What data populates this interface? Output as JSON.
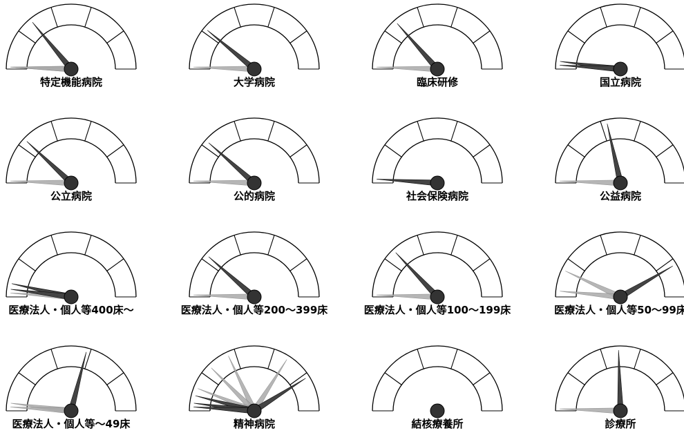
{
  "chart_data": {
    "type": "gauge",
    "scale": [
      0,
      100
    ],
    "segments": 5,
    "colors": {
      "primary_needle": "#444444",
      "secondary_needle": "#aaaaaa",
      "hub": "#333333",
      "line": "#000000"
    },
    "gauges": [
      {
        "label": "特定機能病院",
        "needles": [
          {
            "value": 28,
            "style": "primary"
          },
          {
            "value": 1,
            "style": "secondary"
          },
          {
            "value": 1,
            "style": "secondary"
          }
        ]
      },
      {
        "label": "大学病院",
        "needles": [
          {
            "value": 22,
            "style": "primary"
          },
          {
            "value": 1,
            "style": "secondary"
          }
        ]
      },
      {
        "label": "臨床研修",
        "needles": [
          {
            "value": 27,
            "style": "primary"
          },
          {
            "value": 1,
            "style": "secondary"
          }
        ]
      },
      {
        "label": "国立病院",
        "needles": [
          {
            "value": 4,
            "style": "primary"
          },
          {
            "value": 2,
            "style": "primary"
          }
        ]
      },
      {
        "label": "公立病院",
        "needles": [
          {
            "value": 24,
            "style": "primary"
          },
          {
            "value": 1,
            "style": "secondary"
          }
        ]
      },
      {
        "label": "公的病院",
        "needles": [
          {
            "value": 23,
            "style": "primary"
          },
          {
            "value": 1,
            "style": "secondary"
          }
        ]
      },
      {
        "label": "社会保険病院",
        "needles": [
          {
            "value": 2,
            "style": "primary"
          }
        ]
      },
      {
        "label": "公益病院",
        "needles": [
          {
            "value": 43,
            "style": "primary"
          },
          {
            "value": 1,
            "style": "secondary"
          }
        ]
      },
      {
        "label": "医療法人・個人等400床～",
        "needles": [
          {
            "value": 7,
            "style": "primary"
          },
          {
            "value": 4,
            "style": "primary"
          },
          {
            "value": 2,
            "style": "secondary"
          }
        ]
      },
      {
        "label": "医療法人・個人等200～399床",
        "needles": [
          {
            "value": 23,
            "style": "primary"
          },
          {
            "value": 1,
            "style": "secondary"
          }
        ]
      },
      {
        "label": "医療法人・個人等100～199床",
        "needles": [
          {
            "value": 26,
            "style": "primary"
          },
          {
            "value": 1,
            "style": "secondary"
          }
        ]
      },
      {
        "label": "医療法人・個人等50～99床",
        "needles": [
          {
            "value": 83,
            "style": "primary"
          },
          {
            "value": 14,
            "style": "secondary"
          },
          {
            "value": 3,
            "style": "secondary"
          }
        ]
      },
      {
        "label": "医療法人・個人等～49床",
        "needles": [
          {
            "value": 58,
            "style": "primary"
          },
          {
            "value": 4,
            "style": "secondary"
          },
          {
            "value": 2,
            "style": "secondary"
          }
        ]
      },
      {
        "label": "精神病院",
        "needles": [
          {
            "value": 82,
            "style": "primary"
          },
          {
            "value": 68,
            "style": "secondary"
          },
          {
            "value": 36,
            "style": "secondary"
          },
          {
            "value": 25,
            "style": "secondary"
          },
          {
            "value": 12,
            "style": "secondary"
          },
          {
            "value": 8,
            "style": "primary"
          },
          {
            "value": 4,
            "style": "primary"
          },
          {
            "value": 2,
            "style": "primary"
          }
        ]
      },
      {
        "label": "結核療養所",
        "needles": []
      },
      {
        "label": "診療所",
        "needles": [
          {
            "value": 49,
            "style": "primary"
          },
          {
            "value": 1,
            "style": "secondary"
          }
        ]
      }
    ]
  }
}
